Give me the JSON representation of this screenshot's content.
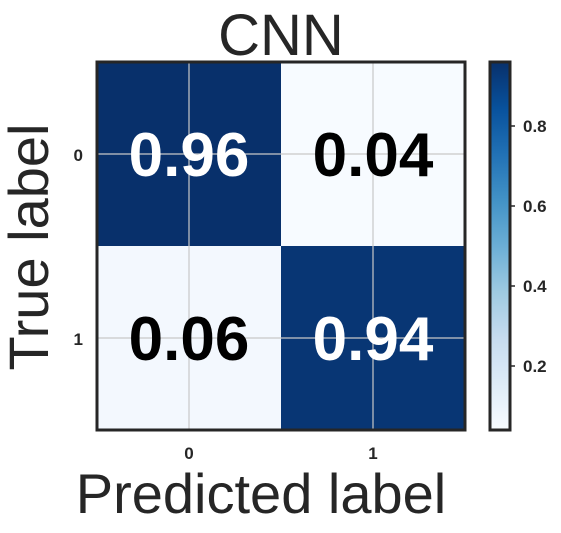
{
  "chart_data": {
    "type": "heatmap",
    "title": "CNN",
    "xlabel": "Predicted label",
    "ylabel": "True label",
    "x_categories": [
      "0",
      "1"
    ],
    "y_categories": [
      "0",
      "1"
    ],
    "values": [
      [
        0.96,
        0.04
      ],
      [
        0.06,
        0.94
      ]
    ],
    "value_labels": [
      [
        "0.96",
        "0.04"
      ],
      [
        "0.06",
        "0.94"
      ]
    ],
    "colormap": "Blues",
    "colorbar": {
      "range": [
        0.04,
        0.96
      ],
      "ticks": [
        0.2,
        0.4,
        0.6,
        0.8
      ],
      "tick_labels": [
        "0.2",
        "0.4",
        "0.6",
        "0.8"
      ]
    },
    "grid": true
  },
  "colors": {
    "high": "#08306b",
    "low": "#f7fbff",
    "text_on_dark": "#ffffff",
    "text_on_light": "#000000",
    "frame": "#262626",
    "grid": "#c8c8c8"
  }
}
